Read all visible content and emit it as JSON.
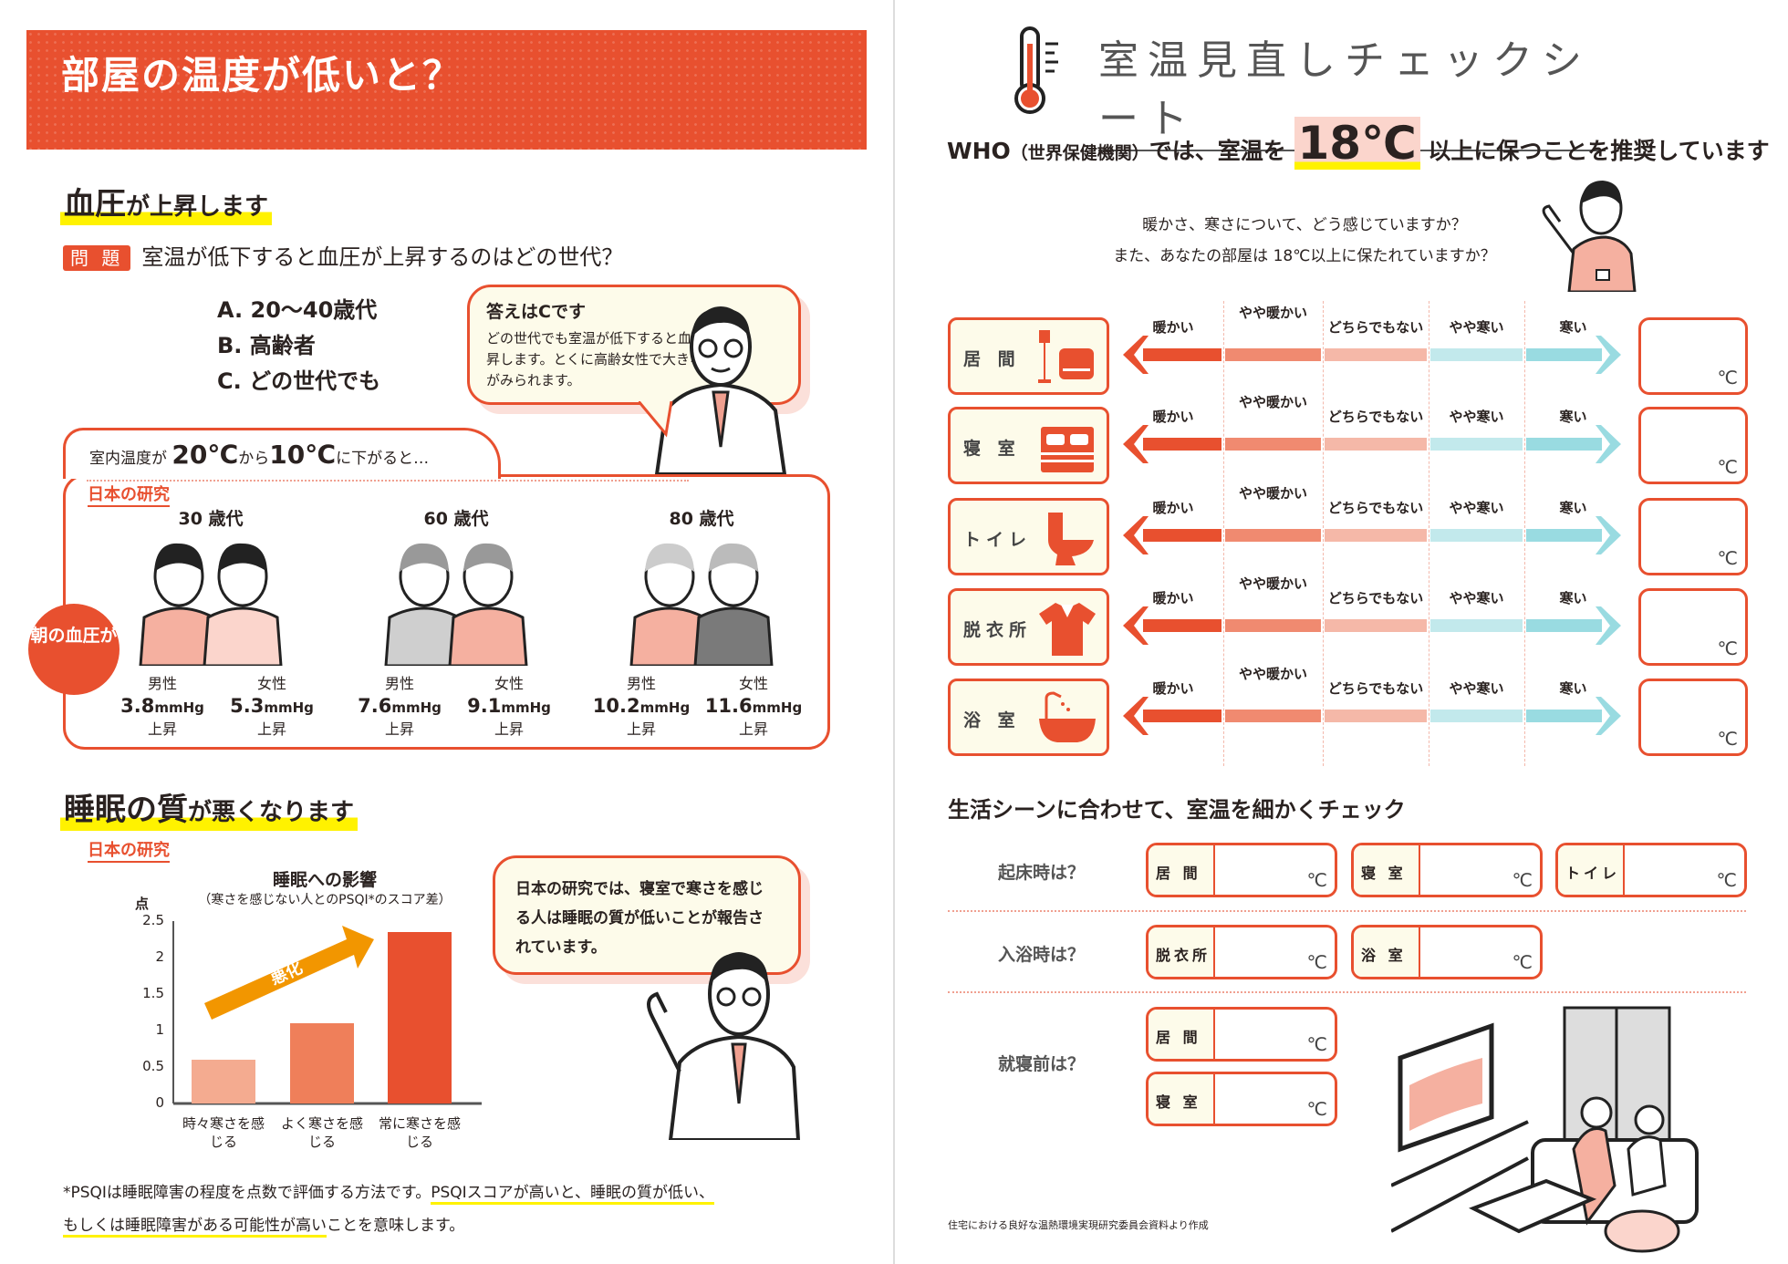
{
  "left": {
    "banner_title": "部屋の温度が低いと？",
    "bp": {
      "heading_big": "血圧",
      "heading_rest": "が上昇します",
      "question_badge": "問 題",
      "question": "室温が低下すると血圧が上昇するのはどの世代？",
      "options": [
        "A. 20〜40歳代",
        "B. 高齢者",
        "C. どの世代でも"
      ],
      "answer_title": "答えはCです",
      "answer_body": "どの世代でも室温が低下すると血圧が上昇します。とくに高齢女性で大きな上昇がみられます。",
      "condition_pre": "室内温度が",
      "condition_t1": "20℃",
      "condition_mid": "から",
      "condition_t2": "10℃",
      "condition_post": "に下がると…",
      "study_label": "日本の研究",
      "badge": "朝の血圧が",
      "groups": [
        {
          "age": "30 歳代",
          "people": [
            {
              "sex": "男性",
              "value": "3.8",
              "unit": "mmHg",
              "change": "上昇"
            },
            {
              "sex": "女性",
              "value": "5.3",
              "unit": "mmHg",
              "change": "上昇"
            }
          ]
        },
        {
          "age": "60 歳代",
          "people": [
            {
              "sex": "男性",
              "value": "7.6",
              "unit": "mmHg",
              "change": "上昇"
            },
            {
              "sex": "女性",
              "value": "9.1",
              "unit": "mmHg",
              "change": "上昇"
            }
          ]
        },
        {
          "age": "80 歳代",
          "people": [
            {
              "sex": "男性",
              "value": "10.2",
              "unit": "mmHg",
              "change": "上昇"
            },
            {
              "sex": "女性",
              "value": "11.6",
              "unit": "mmHg",
              "change": "上昇"
            }
          ]
        }
      ]
    },
    "sleep": {
      "heading_big": "睡眠の質",
      "heading_rest": "が悪くなります",
      "study_label": "日本の研究",
      "bubble": "日本の研究では、寝室で寒さを感じる人は睡眠の質が低いことが報告されています。",
      "footnote_1": "*PSQIは睡眠障害の程度を点数で評価する方法です。",
      "footnote_2": "PSQIスコアが高いと、睡眠の質が低い、",
      "footnote_3": "もしくは睡眠障害がある可能性が高い",
      "footnote_4": "ことを意味します。"
    }
  },
  "chart_data": {
    "type": "bar",
    "title": "睡眠への影響",
    "subtitle": "（寒さを感じない人とのPSQI*のスコア差）",
    "ylabel": "点",
    "categories": [
      "時々寒さを感じる",
      "よく寒さを感じる",
      "常に寒さを感じる"
    ],
    "values": [
      0.6,
      1.1,
      2.35
    ],
    "ylim": [
      0,
      2.5
    ],
    "yticks": [
      "0",
      "0.5",
      "1",
      "1.5",
      "2",
      "2.5"
    ],
    "annotation": "悪化",
    "colors": [
      "#f4ab90",
      "#ef7f5a",
      "#e8502f"
    ]
  },
  "right": {
    "title": "室温見直しチェックシート",
    "who_pre": "WHO",
    "who_paren": "（世界保健機関）",
    "who_mid": "では、室温を",
    "who_temp": "18℃",
    "who_post": "以上に保つことを推奨しています",
    "q1": "暖かさ、寒さについて、どう感じていますか？",
    "q2": "また、あなたの部屋は 18℃以上に保たれていますか？",
    "scale": [
      "暖かい",
      "やや暖かい",
      "どちらでもない",
      "やや寒い",
      "寒い"
    ],
    "scale_colors": [
      "#e8502f",
      "#f08a70",
      "#f5b8a8",
      "#c2e9ec",
      "#99dbe1"
    ],
    "rooms": [
      {
        "name": "居 間",
        "icon": "sofa-lamp-icon"
      },
      {
        "name": "寝 室",
        "icon": "bed-icon"
      },
      {
        "name": "トイレ",
        "icon": "toilet-icon"
      },
      {
        "name": "脱衣所",
        "icon": "shirt-icon"
      },
      {
        "name": "浴 室",
        "icon": "bathtub-icon"
      }
    ],
    "unit": "℃",
    "scene_heading": "生活シーンに合わせて、室温を細かくチェック",
    "scenes": [
      {
        "label": "起床時は？",
        "rooms": [
          "居 間",
          "寝 室",
          "トイレ"
        ]
      },
      {
        "label": "入浴時は？",
        "rooms": [
          "脱衣所",
          "浴 室"
        ]
      },
      {
        "label": "就寝前は？",
        "rooms": [
          "居 間",
          "寝 室"
        ]
      }
    ],
    "source": "住宅における良好な温熱環境実現研究委員会資料より作成"
  },
  "colors": {
    "accent": "#e8502f",
    "cream": "#fdfbea",
    "highlight": "#fff200"
  }
}
